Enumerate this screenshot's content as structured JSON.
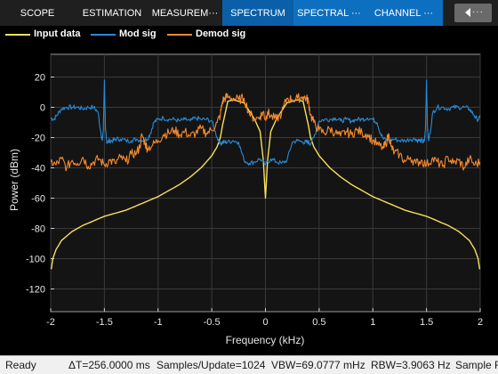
{
  "toolstrip": {
    "tabs": [
      {
        "label": "SCOPE"
      },
      {
        "label": "ESTIMATION"
      },
      {
        "label": "MEASUREM···"
      },
      {
        "label": "SPECTRUM"
      },
      {
        "label": "SPECTRAL ···"
      },
      {
        "label": "CHANNEL ···"
      }
    ]
  },
  "legend": [
    {
      "name": "Input data",
      "color": "#f7e05a"
    },
    {
      "name": "Mod sig",
      "color": "#2a8ad6"
    },
    {
      "name": "Demod sig",
      "color": "#f58a2e"
    }
  ],
  "chart_data": {
    "type": "line",
    "xlabel": "Frequency (kHz)",
    "ylabel": "Power (dBm)",
    "xlim": [
      -2,
      2
    ],
    "ylim": [
      -135,
      35
    ],
    "x_ticks": [
      "-2",
      "-1.5",
      "-1",
      "-0.5",
      "0",
      "0.5",
      "1",
      "1.5",
      "2"
    ],
    "y_ticks": [
      "20",
      "0",
      "-20",
      "-40",
      "-60",
      "-80",
      "-100",
      "-120"
    ],
    "grid": true,
    "series": [
      {
        "name": "Input data",
        "color": "#f7e05a",
        "x": [
          -1.995,
          -1.98,
          -1.95,
          -1.9,
          -1.8,
          -1.7,
          -1.6,
          -1.5,
          -1.4,
          -1.3,
          -1.2,
          -1.1,
          -1.0,
          -0.9,
          -0.8,
          -0.7,
          -0.6,
          -0.5,
          -0.45,
          -0.42,
          -0.4,
          -0.35,
          -0.3,
          -0.2,
          -0.1,
          -0.05,
          -0.02,
          0,
          0.02,
          0.05,
          0.1,
          0.2,
          0.3,
          0.35,
          0.4,
          0.42,
          0.45,
          0.5,
          0.6,
          0.7,
          0.8,
          0.9,
          1.0,
          1.1,
          1.2,
          1.3,
          1.4,
          1.5,
          1.6,
          1.7,
          1.8,
          1.9,
          1.95,
          1.98,
          1.995
        ],
        "y": [
          -107,
          -100,
          -94,
          -88,
          -82,
          -78,
          -75,
          -72,
          -70,
          -68,
          -65,
          -62,
          -59,
          -55,
          -51,
          -46,
          -40,
          -32,
          -26,
          -20,
          -12,
          4,
          5,
          3,
          -8,
          -16,
          -35,
          -60,
          -35,
          -16,
          -8,
          3,
          5,
          4,
          -12,
          -20,
          -26,
          -32,
          -40,
          -46,
          -51,
          -55,
          -59,
          -62,
          -65,
          -68,
          -70,
          -72,
          -75,
          -78,
          -82,
          -88,
          -94,
          -100,
          -107
        ]
      },
      {
        "name": "Mod sig",
        "color": "#2a8ad6",
        "x": [
          -2,
          -1.97,
          -1.94,
          -1.9,
          -1.85,
          -1.8,
          -1.75,
          -1.7,
          -1.65,
          -1.6,
          -1.56,
          -1.53,
          -1.52,
          -1.51,
          -1.5,
          -1.49,
          -1.48,
          -1.47,
          -1.45,
          -1.42,
          -1.4,
          -1.35,
          -1.3,
          -1.25,
          -1.2,
          -1.15,
          -1.1,
          -1.07,
          -1.04,
          -1.0,
          -0.95,
          -0.9,
          -0.85,
          -0.8,
          -0.75,
          -0.7,
          -0.65,
          -0.6,
          -0.55,
          -0.5,
          -0.45,
          -0.42,
          -0.4,
          -0.38,
          -0.35,
          -0.3,
          -0.25,
          -0.2,
          -0.15,
          -0.1,
          -0.05,
          0,
          0.05,
          0.1,
          0.15,
          0.2,
          0.25,
          0.3,
          0.35,
          0.38,
          0.4,
          0.42,
          0.45,
          0.5,
          0.55,
          0.6,
          0.65,
          0.7,
          0.75,
          0.8,
          0.85,
          0.9,
          0.95,
          1.0,
          1.04,
          1.07,
          1.1,
          1.15,
          1.2,
          1.25,
          1.3,
          1.35,
          1.4,
          1.42,
          1.45,
          1.47,
          1.48,
          1.49,
          1.5,
          1.51,
          1.52,
          1.53,
          1.56,
          1.6,
          1.65,
          1.7,
          1.75,
          1.8,
          1.85,
          1.9,
          1.94,
          1.97,
          2
        ],
        "y": [
          -7,
          -8,
          -5,
          -1,
          0,
          0,
          0,
          -1,
          0,
          0,
          -3,
          -18,
          -22,
          -15,
          18,
          -15,
          -22,
          -23,
          -22,
          -22,
          -21,
          -21,
          -22,
          -22,
          -21,
          -22,
          -21,
          -17,
          -10,
          -8,
          -7,
          -8,
          -8,
          -9,
          -8,
          -9,
          -7,
          -8,
          -8,
          -9,
          -20,
          -24,
          -23,
          -23,
          -23,
          -22,
          -23,
          -35,
          -37,
          -36,
          -34,
          -38,
          -34,
          -36,
          -37,
          -35,
          -23,
          -22,
          -23,
          -23,
          -23,
          -24,
          -20,
          -9,
          -8,
          -8,
          -7,
          -9,
          -8,
          -9,
          -8,
          -8,
          -7,
          -8,
          -10,
          -17,
          -21,
          -22,
          -21,
          -22,
          -22,
          -21,
          -21,
          -22,
          -22,
          -23,
          -22,
          -15,
          18,
          -15,
          -22,
          -18,
          -3,
          0,
          0,
          -1,
          0,
          0,
          0,
          -1,
          -5,
          -8,
          -7
        ]
      },
      {
        "name": "Demod sig",
        "color": "#f58a2e",
        "x": [
          -2,
          -1.95,
          -1.9,
          -1.85,
          -1.8,
          -1.75,
          -1.7,
          -1.65,
          -1.6,
          -1.55,
          -1.5,
          -1.45,
          -1.4,
          -1.35,
          -1.3,
          -1.25,
          -1.2,
          -1.17,
          -1.15,
          -1.12,
          -1.1,
          -1.05,
          -1.0,
          -0.95,
          -0.9,
          -0.85,
          -0.8,
          -0.75,
          -0.7,
          -0.65,
          -0.6,
          -0.55,
          -0.5,
          -0.45,
          -0.42,
          -0.4,
          -0.38,
          -0.35,
          -0.3,
          -0.25,
          -0.2,
          -0.15,
          -0.1,
          -0.05,
          -0.02,
          0,
          0.02,
          0.05,
          0.1,
          0.15,
          0.2,
          0.25,
          0.3,
          0.35,
          0.38,
          0.4,
          0.42,
          0.45,
          0.5,
          0.55,
          0.6,
          0.65,
          0.7,
          0.75,
          0.8,
          0.85,
          0.9,
          0.95,
          1.0,
          1.05,
          1.1,
          1.12,
          1.15,
          1.17,
          1.2,
          1.25,
          1.3,
          1.35,
          1.4,
          1.45,
          1.5,
          1.55,
          1.6,
          1.65,
          1.7,
          1.75,
          1.8,
          1.85,
          1.9,
          1.95,
          2
        ],
        "y": [
          -36,
          -38,
          -34,
          -40,
          -35,
          -37,
          -33,
          -39,
          -36,
          -34,
          -38,
          -35,
          -37,
          -33,
          -36,
          -31,
          -30,
          -26,
          -18,
          -24,
          -27,
          -25,
          -22,
          -18,
          -17,
          -15,
          -18,
          -16,
          -19,
          -17,
          -14,
          -17,
          -15,
          -10,
          -5,
          4,
          6,
          7,
          6,
          5,
          6,
          -4,
          -8,
          -6,
          -3,
          -8,
          -3,
          -6,
          -8,
          -4,
          6,
          5,
          6,
          7,
          6,
          4,
          -5,
          -10,
          -15,
          -17,
          -14,
          -17,
          -19,
          -16,
          -18,
          -15,
          -17,
          -18,
          -22,
          -25,
          -27,
          -24,
          -18,
          -26,
          -30,
          -31,
          -36,
          -33,
          -37,
          -35,
          -38,
          -34,
          -36,
          -39,
          -33,
          -37,
          -35,
          -40,
          -34,
          -38,
          -36
        ]
      }
    ]
  },
  "status": {
    "ready": "Ready",
    "delta_t": "ΔT=256.0000 ms",
    "samples_update": "Samples/Update=1024",
    "vbw": "VBW=69.0777 mHz",
    "rbw": "RBW=3.9063 Hz",
    "sample_rate": "Sample R"
  }
}
